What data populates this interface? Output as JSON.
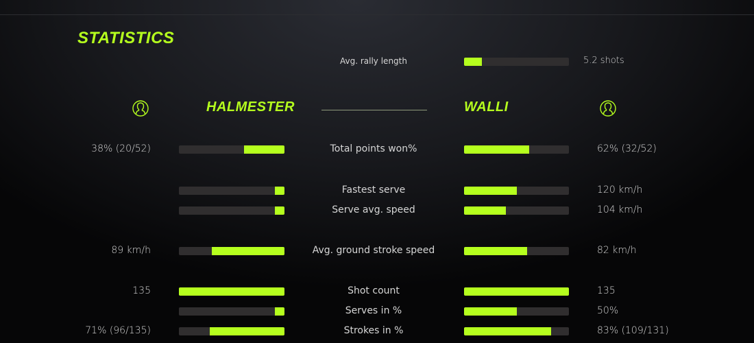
{
  "title": "STATISTICS",
  "accent_color": "#b5ff1e",
  "rally": {
    "label": "Avg. rally length",
    "value": "5.2 shots",
    "fill": 0.17
  },
  "players": {
    "left": {
      "name": "HALMESTER",
      "icon": "user-circle-icon"
    },
    "right": {
      "name": "WALLI",
      "icon": "user-circle-icon"
    }
  },
  "rows": [
    {
      "label": "Total points won%",
      "left_value": "38% (20/52)",
      "right_value": "62% (32/52)",
      "left_fill": 0.38,
      "right_fill": 0.62
    },
    {
      "label": "Fastest serve",
      "left_value": "",
      "right_value": "120 km/h",
      "left_fill": 0.09,
      "right_fill": 0.5
    },
    {
      "label": "Serve avg. speed",
      "left_value": "",
      "right_value": "104 km/h",
      "left_fill": 0.09,
      "right_fill": 0.4
    },
    {
      "label": "Avg. ground stroke speed",
      "left_value": "89 km/h",
      "right_value": "82 km/h",
      "left_fill": 0.69,
      "right_fill": 0.6
    },
    {
      "label": "Shot count",
      "left_value": "135",
      "right_value": "135",
      "left_fill": 1.0,
      "right_fill": 1.0
    },
    {
      "label": "Serves in %",
      "left_value": "",
      "right_value": "50%",
      "left_fill": 0.09,
      "right_fill": 0.5
    },
    {
      "label": "Strokes in %",
      "left_value": "71% (96/135)",
      "right_value": "83% (109/131)",
      "left_fill": 0.71,
      "right_fill": 0.83
    }
  ]
}
